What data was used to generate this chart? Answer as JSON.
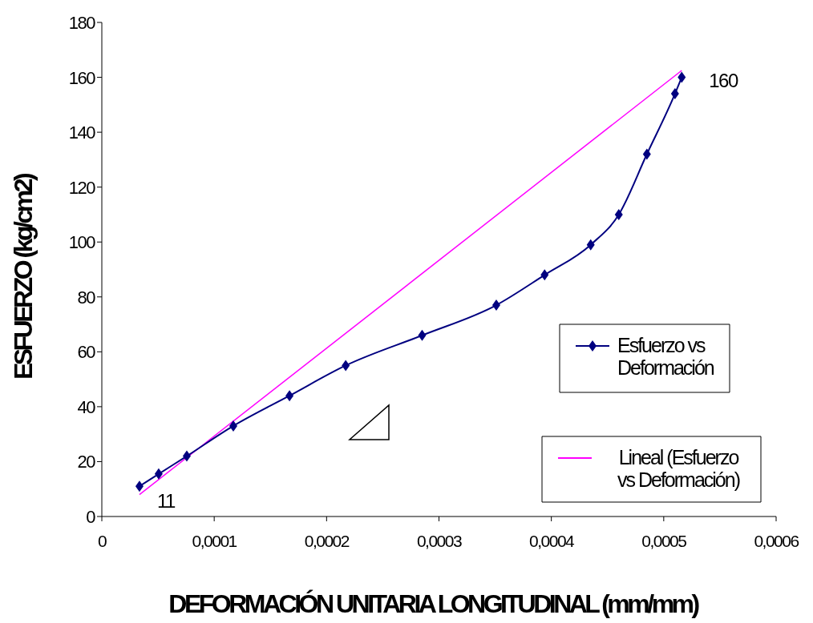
{
  "chart_data": {
    "type": "line",
    "xlabel": "DEFORMACIÓN UNITARIA LONGITUDINAL (mm/mm)",
    "ylabel": "ESFUERZO (kg/cm2)",
    "xlim": [
      0,
      0.0006
    ],
    "xticks": [
      0,
      {
        "value": 0.0001,
        "label": "0,0001"
      },
      {
        "value": 0.0002,
        "label": "0,0002"
      },
      {
        "value": 0.0003,
        "label": "0,0003"
      },
      {
        "value": 0.0004,
        "label": "0,0004"
      },
      {
        "value": 0.0005,
        "label": "0,0005"
      },
      {
        "value": 0.0006,
        "label": "0,0006"
      }
    ],
    "ylim": [
      0,
      180
    ],
    "yticks": [
      0,
      20,
      40,
      60,
      80,
      100,
      120,
      140,
      160,
      180
    ],
    "grid": false,
    "legend": "right",
    "series": [
      {
        "name": "Esfuerzo vs Deformación",
        "color": "#000080",
        "marker": "diamond",
        "x": [
          3.35e-05,
          5.06e-05,
          7.56e-05,
          0.000117,
          0.000167,
          0.000217,
          0.000285,
          0.000351,
          0.000394,
          0.000435,
          0.00046,
          0.000485,
          0.00051,
          0.000516
        ],
        "values": [
          11,
          15.5,
          22,
          33,
          44,
          55,
          66,
          77,
          88,
          99,
          110,
          132,
          154,
          160
        ],
        "value_labels": [
          "11",
          null,
          null,
          null,
          null,
          null,
          null,
          null,
          null,
          null,
          null,
          null,
          null,
          "160"
        ]
      },
      {
        "name": "Lineal (Esfuerzo vs Deformación)",
        "color": "#ff00ff",
        "marker": "none",
        "x": [
          3.35e-05,
          0.000516
        ],
        "values": [
          8,
          162.5
        ]
      }
    ]
  }
}
